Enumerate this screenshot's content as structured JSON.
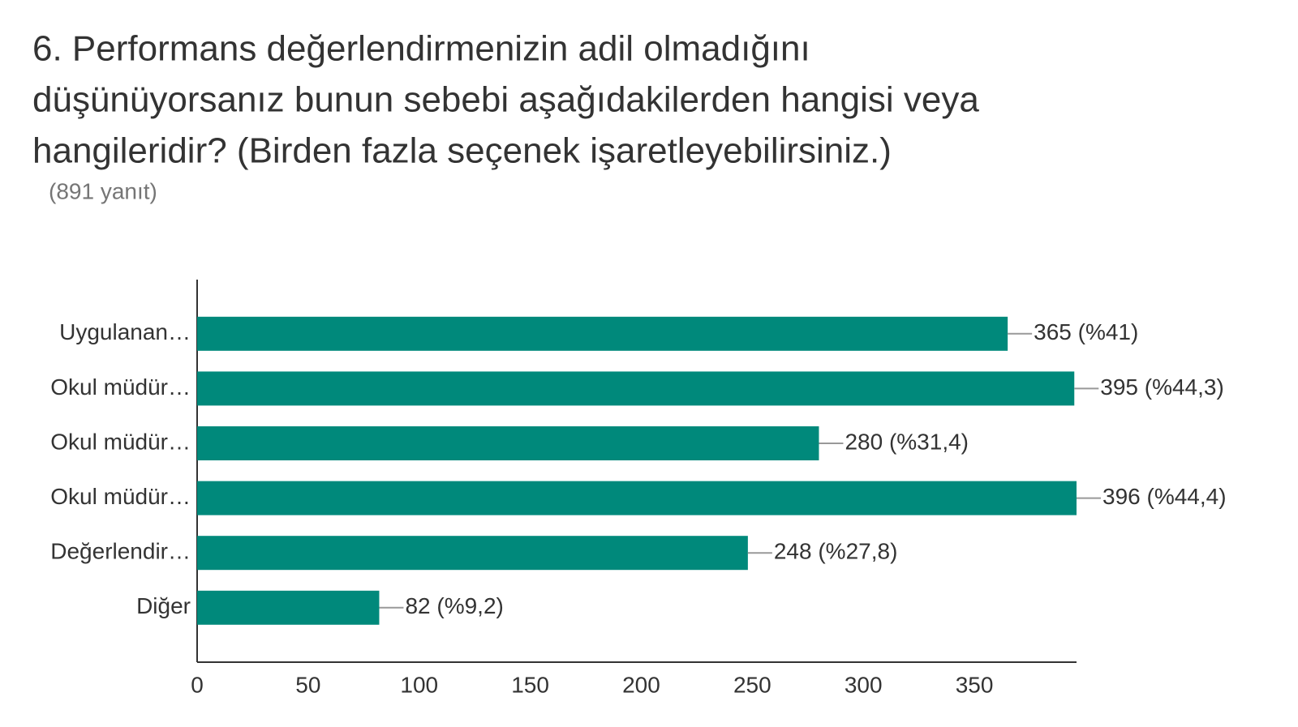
{
  "chart_data": {
    "type": "bar",
    "orientation": "horizontal",
    "title": [
      "6. Performans değerlendirmenizin adil olmadığını",
      "düşünüyorsanız bunun sebebi aşağıdakilerden hangisi veya",
      "hangileridir? (Birden fazla seçenek işaretleyebilirsiniz.)"
    ],
    "subtitle": "(891 yanıt)",
    "categories": [
      "Uygulanan…",
      "Okul müdür…",
      "Okul müdür…",
      "Okul müdür…",
      "Değerlendir…",
      "Diğer"
    ],
    "values": [
      365,
      395,
      280,
      396,
      248,
      82
    ],
    "value_labels": [
      "365 (%41)",
      "395 (%44,3)",
      "280 (%31,4)",
      "396 (%44,4)",
      "248 (%27,8)",
      "82 (%9,2)"
    ],
    "color": "#00897b",
    "xlim": [
      0,
      396
    ],
    "xticks": [
      0,
      50,
      100,
      150,
      200,
      250,
      300,
      350
    ]
  }
}
